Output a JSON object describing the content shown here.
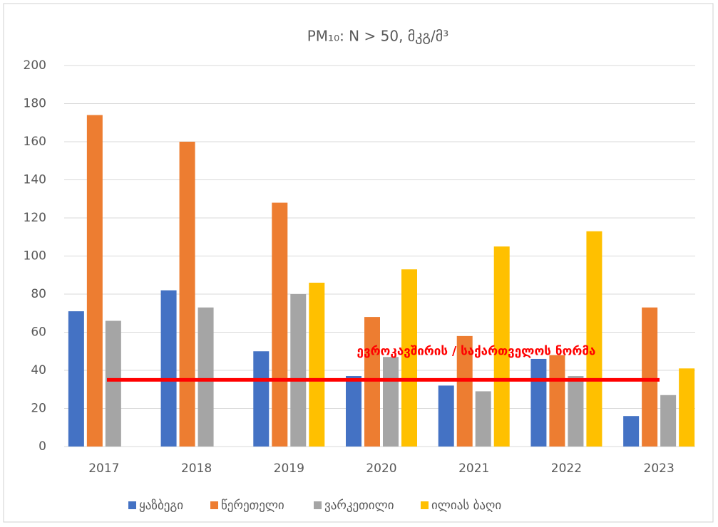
{
  "chart_data": {
    "type": "bar",
    "title": "PM₁₀: N > 50, მკგ/მ³",
    "categories": [
      "2017",
      "2018",
      "2019",
      "2020",
      "2021",
      "2022",
      "2023"
    ],
    "series": [
      {
        "name": "ყაზბეგი",
        "color": "#4472c4",
        "values": [
          71,
          82,
          50,
          37,
          32,
          46,
          16
        ]
      },
      {
        "name": "წერეთელი",
        "color": "#ed7d31",
        "values": [
          174,
          160,
          128,
          68,
          58,
          48,
          73
        ]
      },
      {
        "name": "ვარკეთილი",
        "color": "#a5a5a5",
        "values": [
          66,
          73,
          80,
          47,
          29,
          37,
          27
        ]
      },
      {
        "name": "ილიას ბაღი",
        "color": "#ffc000",
        "values": [
          null,
          null,
          86,
          93,
          105,
          113,
          41
        ]
      }
    ],
    "ylim": [
      0,
      200
    ],
    "yticks": [
      0,
      20,
      40,
      60,
      80,
      100,
      120,
      140,
      160,
      180,
      200
    ],
    "grid": true,
    "legend": "bottom",
    "reference_line": {
      "value": 35,
      "label": "ევროკავშირის / საქართველოს ნორმა",
      "color": "#ff0000"
    }
  }
}
